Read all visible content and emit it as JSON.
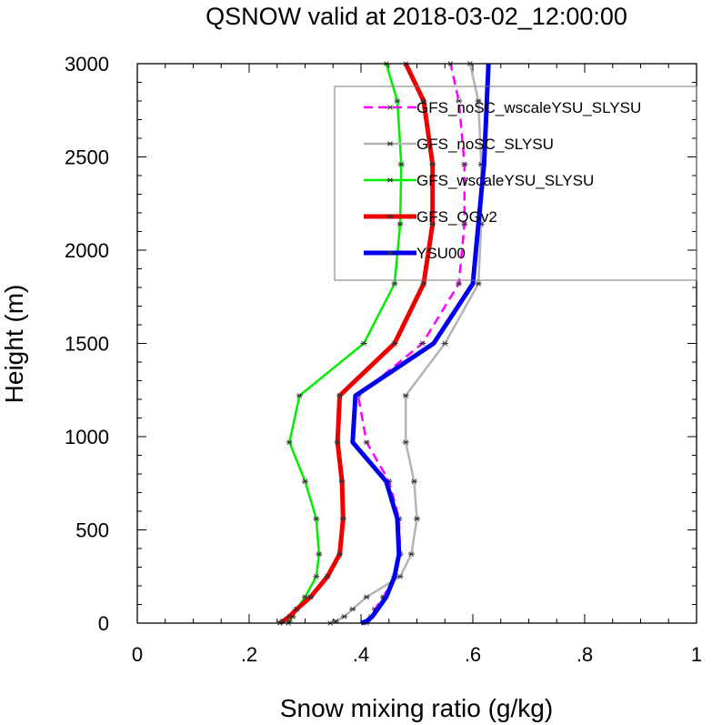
{
  "chart_data": {
    "type": "line",
    "title": "QSNOW valid at 2018-03-02_12:00:00",
    "xlabel": "Snow mixing ratio (g/kg)",
    "ylabel": "Height (m)",
    "xlim": [
      0,
      1
    ],
    "ylim": [
      0,
      3000
    ],
    "xticks": [
      0,
      0.2,
      0.4,
      0.6,
      0.8,
      1
    ],
    "xtick_labels": [
      "0",
      ".2",
      ".4",
      ".6",
      ".8",
      "1"
    ],
    "yticks": [
      0,
      500,
      1000,
      1500,
      2000,
      2500,
      3000
    ],
    "ytick_labels": [
      "0",
      "500",
      "1000",
      "1500",
      "2000",
      "2500",
      "3000"
    ],
    "grid": false,
    "legend_position": "top-right",
    "heights": [
      0,
      10,
      35,
      75,
      140,
      250,
      370,
      560,
      760,
      970,
      1220,
      1500,
      1820,
      2140,
      2460,
      2800,
      3000
    ],
    "series": [
      {
        "name": "GFS_noSC_wscaleYSU_SLYSU",
        "color": "#ff00ff",
        "width": 2.5,
        "dash": "10,6",
        "markers": true,
        "x": [
          0.41,
          0.412,
          0.418,
          0.425,
          0.44,
          0.46,
          0.47,
          0.468,
          0.45,
          0.41,
          0.395,
          0.51,
          0.575,
          0.585,
          0.585,
          0.575,
          0.56
        ]
      },
      {
        "name": "GFS_noSC_SLYSU",
        "color": "#b4b4b4",
        "width": 2.5,
        "dash": "",
        "markers": true,
        "x": [
          0.345,
          0.355,
          0.37,
          0.385,
          0.41,
          0.47,
          0.49,
          0.5,
          0.495,
          0.48,
          0.48,
          0.55,
          0.61,
          0.615,
          0.615,
          0.61,
          0.595
        ]
      },
      {
        "name": "GFS_wscaleYSU_SLYSU",
        "color": "#00ee00",
        "width": 2.5,
        "dash": "",
        "markers": true,
        "x": [
          0.27,
          0.272,
          0.278,
          0.285,
          0.3,
          0.32,
          0.325,
          0.32,
          0.3,
          0.272,
          0.29,
          0.405,
          0.46,
          0.47,
          0.472,
          0.465,
          0.445
        ]
      },
      {
        "name": "GFS_OGv2",
        "color": "#ee0000",
        "width": 5,
        "dash": "",
        "markers": true,
        "x": [
          0.255,
          0.26,
          0.272,
          0.285,
          0.31,
          0.34,
          0.362,
          0.368,
          0.366,
          0.358,
          0.362,
          0.46,
          0.512,
          0.528,
          0.528,
          0.512,
          0.48
        ]
      },
      {
        "name": "YSU00",
        "color": "#0000ee",
        "width": 5,
        "dash": "",
        "markers": false,
        "x": [
          0.4,
          0.41,
          0.42,
          0.43,
          0.445,
          0.46,
          0.468,
          0.465,
          0.445,
          0.385,
          0.39,
          0.53,
          0.6,
          0.61,
          0.62,
          0.625,
          0.628
        ]
      }
    ]
  }
}
